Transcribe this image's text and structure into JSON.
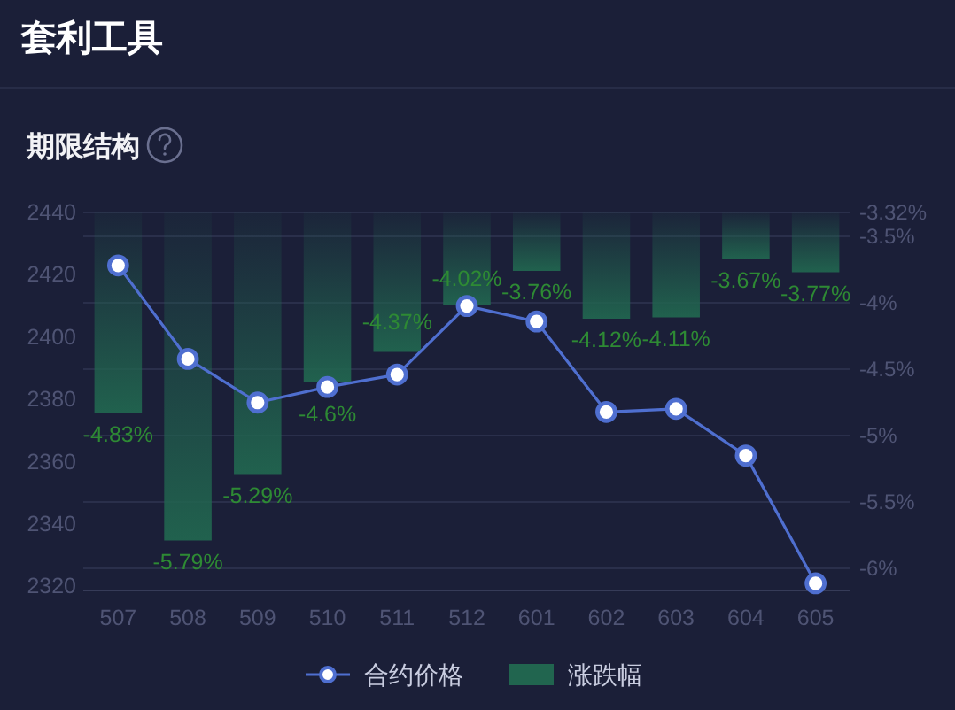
{
  "chart_data": {
    "type": "bar",
    "title": "套利工具",
    "subtitle": "期限结构",
    "categories": [
      "507",
      "508",
      "509",
      "510",
      "511",
      "512",
      "601",
      "602",
      "603",
      "604",
      "605"
    ],
    "series": [
      {
        "name": "合约价格",
        "type": "line",
        "color": "#4f6fd0",
        "values": [
          2423,
          2393,
          2379,
          2384,
          2388,
          2410,
          2405,
          2376,
          2377,
          2362,
          2321
        ]
      },
      {
        "name": "涨跌幅",
        "type": "bar",
        "axis": "y2",
        "color": "#21654f",
        "values": [
          -4.83,
          -5.79,
          -5.29,
          -4.6,
          -4.37,
          -4.02,
          -3.76,
          -4.12,
          -4.11,
          -3.67,
          -3.77
        ],
        "value_labels": [
          "-4.83%",
          "-5.79%",
          "-5.29%",
          "-4.6%",
          "-4.37%",
          "-4.02%",
          "-3.76%",
          "-4.12%",
          "-4.11%",
          "-3.67%",
          "-3.77%"
        ]
      }
    ],
    "ylim": [
      2319,
      2440
    ],
    "yticks": [
      2320,
      2340,
      2360,
      2380,
      2400,
      2420,
      2440
    ],
    "y2lim": [
      -6.16,
      -3.32
    ],
    "y2ticks": [
      {
        "value": -3.32,
        "label": "-3.32%"
      },
      {
        "value": -3.5,
        "label": "-3.5%"
      },
      {
        "value": -4,
        "label": "-4%"
      },
      {
        "value": -4.5,
        "label": "-4.5%"
      },
      {
        "value": -5,
        "label": "-5%"
      },
      {
        "value": -5.5,
        "label": "-5.5%"
      },
      {
        "value": -6,
        "label": "-6%"
      }
    ],
    "grid": "y2",
    "legend": "bottom",
    "marker": "circle"
  }
}
